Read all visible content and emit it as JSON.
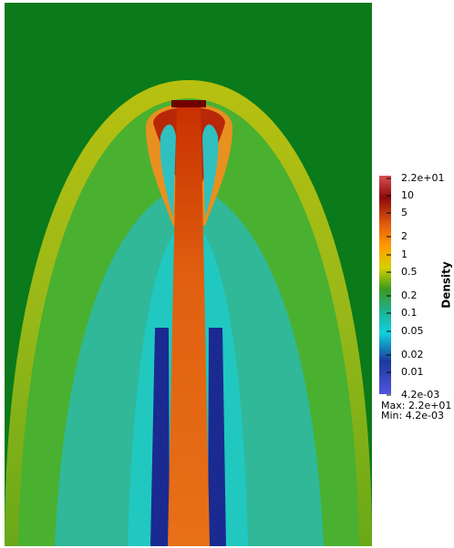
{
  "colorbar": {
    "title": "Density",
    "labels": [
      "2.2e+01",
      "10",
      "5",
      "2",
      "1",
      "0.5",
      "0.2",
      "0.1",
      "0.05",
      "0.02",
      "0.01",
      "4.2e-03"
    ],
    "max_label": "Max: 2.2e+01",
    "min_label": "Min: 4.2e-03"
  }
}
